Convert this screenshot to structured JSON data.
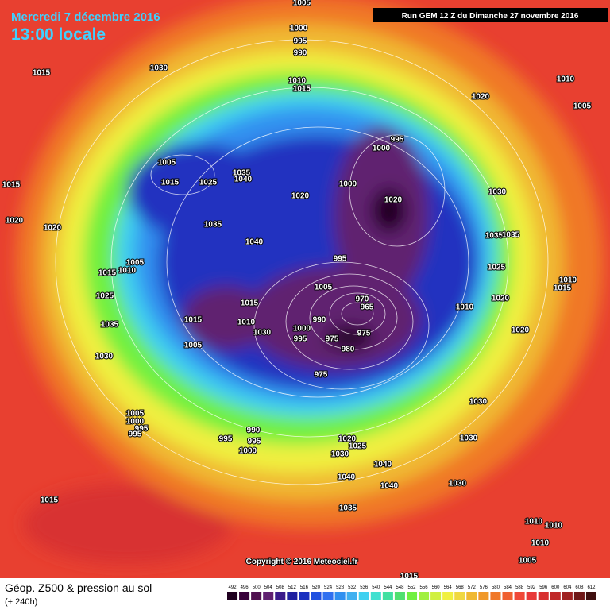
{
  "header": {
    "date": "Mercredi 7 décembre 2016",
    "time": "13:00 locale",
    "run": "Run GEM 12 Z du Dimanche 27 novembre 2016"
  },
  "footer": {
    "title": "Géop. Z500 & pression au sol",
    "lead": "(+ 240h)",
    "copyright": "Copyright © 2016 Meteociel.fr"
  },
  "legend": {
    "values": [
      492,
      496,
      500,
      504,
      508,
      512,
      516,
      520,
      524,
      528,
      532,
      536,
      540,
      544,
      548,
      552,
      556,
      560,
      564,
      568,
      572,
      576,
      580,
      584,
      588,
      592,
      596,
      600,
      604,
      608,
      612
    ],
    "colors": [
      "#200020",
      "#38003a",
      "#501050",
      "#602070",
      "#3a1a8a",
      "#2020a0",
      "#1a30c0",
      "#2050e0",
      "#3070f0",
      "#3090f0",
      "#40b0f0",
      "#40d0f0",
      "#40e0d0",
      "#40e0a0",
      "#50e070",
      "#70f040",
      "#a0f040",
      "#d0f040",
      "#f0f040",
      "#f0d840",
      "#f0b830",
      "#f09828",
      "#f07828",
      "#f06030",
      "#f04838",
      "#e83838",
      "#d83030",
      "#c02828",
      "#a02020",
      "#701818",
      "#401010"
    ]
  },
  "isobar_labels": [
    "1005",
    "1000",
    "995",
    "990",
    "1015",
    "1030",
    "1010",
    "1015",
    "1010",
    "1005",
    "1020",
    "995",
    "1000",
    "1005",
    "1015",
    "1025",
    "1035",
    "1040",
    "1000",
    "1020",
    "1020",
    "1030",
    "1015",
    "1020",
    "1020",
    "1035",
    "1040",
    "1035",
    "1035",
    "995",
    "1025",
    "1005",
    "1010",
    "1015",
    "1010",
    "1015",
    "1005",
    "970",
    "965",
    "1025",
    "1015",
    "1015",
    "1010",
    "990",
    "1000",
    "1030",
    "995",
    "975",
    "975",
    "980",
    "1010",
    "1020",
    "1020",
    "1035",
    "1005",
    "1030",
    "975",
    "1030",
    "1005",
    "1000",
    "995",
    "995",
    "990",
    "995",
    "995",
    "1000",
    "1030",
    "1020",
    "1025",
    "1030",
    "1040",
    "1040",
    "1040",
    "1030",
    "1015",
    "1035",
    "1010",
    "1010",
    "1005",
    "1010",
    "1015"
  ]
}
